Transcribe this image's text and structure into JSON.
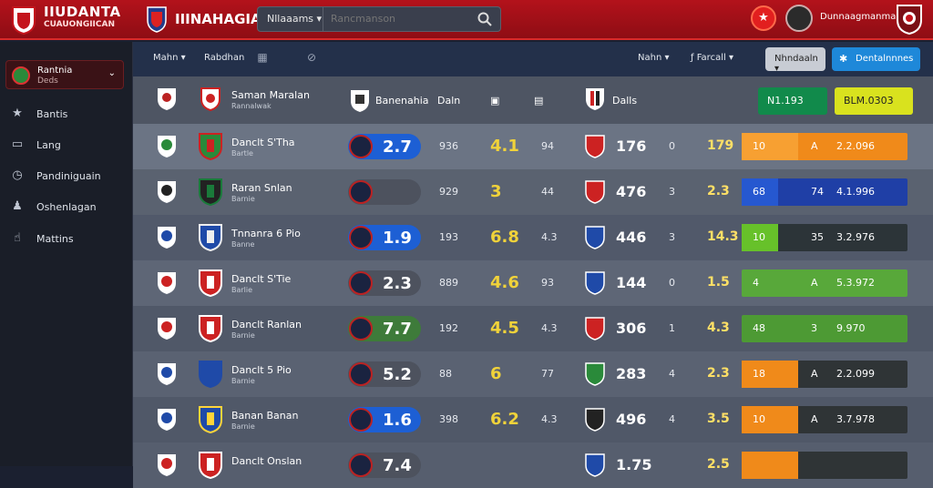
{
  "header": {
    "brand_title": "IIUDANTA",
    "brand_sub": "CUAUONGIICAN",
    "league_title": "IIINAHAGIA",
    "search_scope": "Nllaaams",
    "search_placeholder": "Rancmanson",
    "username": "Dunnaagmanma"
  },
  "sidebar": {
    "team_name": "Rantnia",
    "team_sub": "Deds",
    "items": [
      {
        "icon": "star-icon",
        "label": "Bantis"
      },
      {
        "icon": "monitor-icon",
        "label": "Lang"
      },
      {
        "icon": "clock-icon",
        "label": "Pandiniguain"
      },
      {
        "icon": "people-icon",
        "label": "Oshenlagan"
      },
      {
        "icon": "thumb-icon",
        "label": "Mattins"
      }
    ]
  },
  "toolbar": {
    "menu1": "Mahn",
    "menu2": "Rabdhan",
    "right1": "Nahn",
    "right2": "Farcall",
    "button_gray": "Nhndaaln",
    "button_blue": "Dentalnnnes"
  },
  "table_header": {
    "name": "Saman Maralan",
    "name_sub": "Rannalwak",
    "col_team": "Banenahia",
    "col_score": "Daln",
    "col_detail": "Dalls",
    "btn_green": "N1.193",
    "btn_yellow": "BLM.0303"
  },
  "rows": [
    {
      "name": "Danclt S'Tha",
      "sub": "Bartle",
      "rating": "2.7",
      "c1": "936",
      "big": "4.1",
      "c2": "94",
      "stat": "176",
      "c3": "0",
      "bar_left": "179",
      "bar_a": "10",
      "bar_b": "A",
      "bar_c": "2.2.096"
    },
    {
      "name": "Raran Snlan",
      "sub": "Barnie",
      "rating": "",
      "c1": "929",
      "big": "3",
      "c2": "44",
      "stat": "476",
      "c3": "3",
      "bar_left": "2.3",
      "bar_a": "68",
      "bar_b": "74",
      "bar_c": "4.1.996"
    },
    {
      "name": "Tnnanra 6 Pio",
      "sub": "Banne",
      "rating": "1.9",
      "c1": "193",
      "big": "6.8",
      "c2": "4.3",
      "stat": "446",
      "c3": "3",
      "bar_left": "14.3",
      "bar_a": "10",
      "bar_b": "35",
      "bar_c": "3.2.976"
    },
    {
      "name": "Danclt S'Tie",
      "sub": "Barlie",
      "rating": "2.3",
      "c1": "889",
      "big": "4.6",
      "c2": "93",
      "stat": "144",
      "c3": "0",
      "bar_left": "1.5",
      "bar_a": "4",
      "bar_b": "A",
      "bar_c": "5.3.972"
    },
    {
      "name": "Danclt Ranlan",
      "sub": "Barnie",
      "rating": "7.7",
      "c1": "192",
      "big": "4.5",
      "c2": "4.3",
      "stat": "306",
      "c3": "1",
      "bar_left": "4.3",
      "bar_a": "48",
      "bar_b": "3",
      "bar_c": "9.970"
    },
    {
      "name": "Danclt 5 Pio",
      "sub": "Barnie",
      "rating": "5.2",
      "c1": "88",
      "big": "6",
      "c2": "77",
      "stat": "283",
      "c3": "4",
      "bar_left": "2.3",
      "bar_a": "18",
      "bar_b": "A",
      "bar_c": "2.2.099"
    },
    {
      "name": "Banan Banan",
      "sub": "Barnie",
      "rating": "1.6",
      "c1": "398",
      "big": "6.2",
      "c2": "4.3",
      "stat": "496",
      "c3": "4",
      "bar_left": "3.5",
      "bar_a": "10",
      "bar_b": "A",
      "bar_c": "3.7.978"
    },
    {
      "name": "Danclt Onslan",
      "sub": "",
      "rating": "7.4",
      "c1": "",
      "big": "",
      "c2": "",
      "stat": "1.75",
      "c3": "",
      "bar_left": "2.5",
      "bar_a": "",
      "bar_b": "",
      "bar_c": ""
    }
  ],
  "colors": {
    "red": "#b3121b",
    "orange": "#f28a14",
    "blue": "#2146b8",
    "green": "#55a83a",
    "yellow": "#f0d23a"
  }
}
